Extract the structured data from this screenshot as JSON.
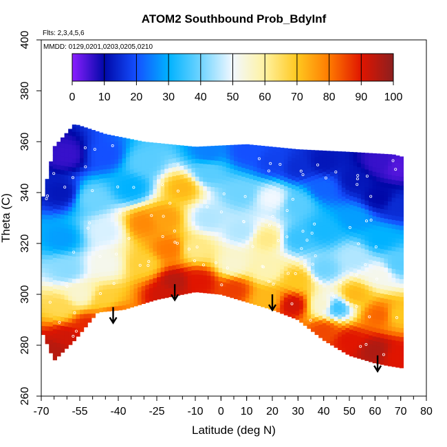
{
  "chart_data": {
    "type": "heatmap",
    "title": "ATOM2 Southbound Prob_BdyInf",
    "subtitle_flights": "Flts: 2,3,4,5,6",
    "subtitle_dates": "MMDD: 0129,0201,0203,0205,0210",
    "xlabel": "Latitude (deg N)",
    "ylabel": "Theta (C)",
    "xlim": [
      -70,
      80
    ],
    "ylim": [
      260,
      400
    ],
    "x_tick_labels": [
      "-70",
      "-55",
      "-40",
      "-25",
      "-10",
      "0",
      "10",
      "20",
      "30",
      "40",
      "50",
      "60",
      "70",
      "80"
    ],
    "x_ticks": [
      -70,
      -55,
      -40,
      -25,
      -10,
      0,
      10,
      20,
      30,
      40,
      50,
      60,
      70,
      80
    ],
    "x_minor_ticks": [
      -70,
      -65,
      -60,
      -55,
      -50,
      -45,
      -40,
      -35,
      -30,
      -25,
      -20,
      -15,
      -10,
      -5,
      0,
      5,
      10,
      15,
      20,
      25,
      30,
      35,
      40,
      45,
      50,
      55,
      60,
      65,
      70,
      75,
      80
    ],
    "y_ticks": [
      260,
      280,
      300,
      320,
      340,
      360,
      380,
      400
    ],
    "y_tick_labels": [
      "260",
      "280",
      "300",
      "320",
      "340",
      "360",
      "380",
      "400"
    ],
    "colorbar": {
      "range": [
        0,
        100
      ],
      "ticks": [
        0,
        10,
        20,
        30,
        40,
        50,
        60,
        70,
        80,
        90,
        100
      ],
      "tick_labels": [
        "0",
        "10",
        "20",
        "30",
        "40",
        "50",
        "60",
        "70",
        "80",
        "90",
        "100"
      ],
      "color_stops": [
        {
          "value": 0,
          "color": "#8b1fff"
        },
        {
          "value": 10,
          "color": "#0008a8"
        },
        {
          "value": 20,
          "color": "#1450ff"
        },
        {
          "value": 30,
          "color": "#00b2ff"
        },
        {
          "value": 40,
          "color": "#6fd4ff"
        },
        {
          "value": 50,
          "color": "#f2f8ff"
        },
        {
          "value": 60,
          "color": "#fff2a0"
        },
        {
          "value": 70,
          "color": "#ffc81f"
        },
        {
          "value": 80,
          "color": "#ff7a00"
        },
        {
          "value": 90,
          "color": "#e01500"
        },
        {
          "value": 100,
          "color": "#8c1f1f"
        }
      ]
    },
    "coverage_top": [
      [
        -70,
        335
      ],
      [
        -65,
        358
      ],
      [
        -57,
        367
      ],
      [
        -45,
        363
      ],
      [
        -30,
        360
      ],
      [
        -10,
        358
      ],
      [
        10,
        359
      ],
      [
        30,
        357
      ],
      [
        50,
        356
      ],
      [
        67,
        355
      ],
      [
        71,
        354
      ]
    ],
    "coverage_bottom": [
      [
        -70,
        286
      ],
      [
        -65,
        274
      ],
      [
        -57,
        282
      ],
      [
        -48,
        293
      ],
      [
        -38,
        294
      ],
      [
        -25,
        298
      ],
      [
        -10,
        301
      ],
      [
        0,
        300
      ],
      [
        10,
        297
      ],
      [
        20,
        294
      ],
      [
        30,
        290
      ],
      [
        40,
        282
      ],
      [
        50,
        276
      ],
      [
        60,
        273
      ],
      [
        65,
        272
      ],
      [
        71,
        271
      ]
    ],
    "field_samples": [
      {
        "x": -65,
        "y": 278,
        "v": 95
      },
      {
        "x": -60,
        "y": 283,
        "v": 92
      },
      {
        "x": -52,
        "y": 288,
        "v": 88
      },
      {
        "x": -42,
        "y": 292,
        "v": 82
      },
      {
        "x": -62,
        "y": 295,
        "v": 66
      },
      {
        "x": -55,
        "y": 300,
        "v": 55
      },
      {
        "x": -45,
        "y": 298,
        "v": 68
      },
      {
        "x": -60,
        "y": 310,
        "v": 42
      },
      {
        "x": -45,
        "y": 312,
        "v": 52
      },
      {
        "x": -30,
        "y": 312,
        "v": 68
      },
      {
        "x": -62,
        "y": 322,
        "v": 28
      },
      {
        "x": -45,
        "y": 325,
        "v": 48
      },
      {
        "x": -30,
        "y": 328,
        "v": 78
      },
      {
        "x": -62,
        "y": 340,
        "v": 12
      },
      {
        "x": -50,
        "y": 338,
        "v": 40
      },
      {
        "x": -35,
        "y": 342,
        "v": 30
      },
      {
        "x": -60,
        "y": 355,
        "v": 6
      },
      {
        "x": -45,
        "y": 355,
        "v": 20
      },
      {
        "x": -30,
        "y": 352,
        "v": 38
      },
      {
        "x": -22,
        "y": 300,
        "v": 92
      },
      {
        "x": -18,
        "y": 305,
        "v": 95
      },
      {
        "x": -20,
        "y": 318,
        "v": 80
      },
      {
        "x": -22,
        "y": 330,
        "v": 75
      },
      {
        "x": -15,
        "y": 342,
        "v": 72
      },
      {
        "x": -8,
        "y": 305,
        "v": 90
      },
      {
        "x": -10,
        "y": 318,
        "v": 62
      },
      {
        "x": -5,
        "y": 330,
        "v": 45
      },
      {
        "x": -5,
        "y": 348,
        "v": 38
      },
      {
        "x": -5,
        "y": 356,
        "v": 25
      },
      {
        "x": 5,
        "y": 302,
        "v": 86
      },
      {
        "x": 5,
        "y": 312,
        "v": 55
      },
      {
        "x": 8,
        "y": 325,
        "v": 45
      },
      {
        "x": 8,
        "y": 340,
        "v": 40
      },
      {
        "x": 10,
        "y": 356,
        "v": 20
      },
      {
        "x": 18,
        "y": 298,
        "v": 72
      },
      {
        "x": 18,
        "y": 310,
        "v": 58
      },
      {
        "x": 18,
        "y": 322,
        "v": 62
      },
      {
        "x": 20,
        "y": 338,
        "v": 50
      },
      {
        "x": 20,
        "y": 352,
        "v": 18
      },
      {
        "x": 28,
        "y": 296,
        "v": 92
      },
      {
        "x": 30,
        "y": 306,
        "v": 70
      },
      {
        "x": 30,
        "y": 322,
        "v": 35
      },
      {
        "x": 30,
        "y": 336,
        "v": 38
      },
      {
        "x": 30,
        "y": 350,
        "v": 15
      },
      {
        "x": 40,
        "y": 286,
        "v": 85
      },
      {
        "x": 40,
        "y": 296,
        "v": 55
      },
      {
        "x": 40,
        "y": 310,
        "v": 40
      },
      {
        "x": 40,
        "y": 325,
        "v": 32
      },
      {
        "x": 40,
        "y": 342,
        "v": 22
      },
      {
        "x": 40,
        "y": 352,
        "v": 12
      },
      {
        "x": 45,
        "y": 295,
        "v": 35
      },
      {
        "x": 50,
        "y": 282,
        "v": 90
      },
      {
        "x": 52,
        "y": 300,
        "v": 72
      },
      {
        "x": 52,
        "y": 315,
        "v": 45
      },
      {
        "x": 52,
        "y": 330,
        "v": 28
      },
      {
        "x": 52,
        "y": 345,
        "v": 12
      },
      {
        "x": 60,
        "y": 278,
        "v": 96
      },
      {
        "x": 62,
        "y": 292,
        "v": 82
      },
      {
        "x": 62,
        "y": 308,
        "v": 52
      },
      {
        "x": 62,
        "y": 322,
        "v": 30
      },
      {
        "x": 62,
        "y": 338,
        "v": 10
      },
      {
        "x": 62,
        "y": 352,
        "v": 6
      },
      {
        "x": 69,
        "y": 276,
        "v": 90
      },
      {
        "x": 69,
        "y": 292,
        "v": 70
      },
      {
        "x": 69,
        "y": 312,
        "v": 38
      },
      {
        "x": 69,
        "y": 335,
        "v": 15
      },
      {
        "x": 69,
        "y": 350,
        "v": 4
      }
    ],
    "arrows": [
      [
        -42,
        295
      ],
      [
        -18,
        304
      ],
      [
        20,
        300
      ],
      [
        61,
        276
      ]
    ],
    "grid": false,
    "legend_placement": "top"
  }
}
